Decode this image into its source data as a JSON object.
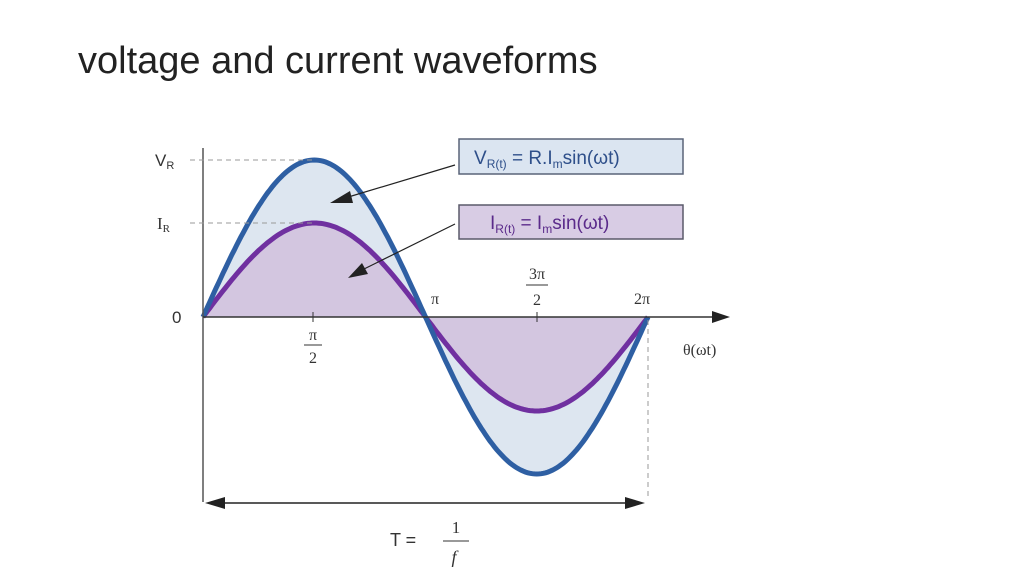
{
  "header": {
    "title": "voltage and current waveforms"
  },
  "diagram": {
    "y_labels": {
      "vr": {
        "main": "V",
        "sub": "R"
      },
      "ir": {
        "main": "I",
        "sub": "R"
      },
      "zero": "0"
    },
    "x_labels": {
      "half_pi": {
        "num": "π",
        "den": "2"
      },
      "pi": "π",
      "three_half_pi": {
        "num": "3π",
        "den": "2"
      },
      "two_pi": "2π",
      "axis": "θ(ωt)"
    },
    "voltage_box": {
      "v": "V",
      "sub": "R(t)",
      "mid": " = R.I",
      "sub2": "m",
      "end": "sin(ωt)"
    },
    "current_box": {
      "i": "I",
      "sub": "R(t)",
      "mid": " = I",
      "sub2": "m",
      "end": "sin(ωt)"
    },
    "period": {
      "lhs": "T  =",
      "num": "1",
      "den": "f"
    }
  }
}
